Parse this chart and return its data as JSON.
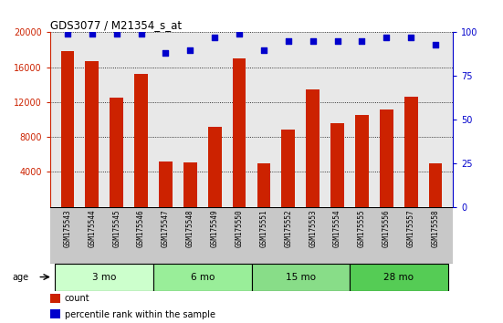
{
  "title": "GDS3077 / M21354_s_at",
  "samples": [
    "GSM175543",
    "GSM175544",
    "GSM175545",
    "GSM175546",
    "GSM175547",
    "GSM175548",
    "GSM175549",
    "GSM175550",
    "GSM175551",
    "GSM175552",
    "GSM175553",
    "GSM175554",
    "GSM175555",
    "GSM175556",
    "GSM175557",
    "GSM175558"
  ],
  "counts": [
    17800,
    16700,
    12500,
    15200,
    5200,
    5100,
    9200,
    17000,
    5000,
    8800,
    13500,
    9600,
    10500,
    11200,
    12600,
    5000
  ],
  "percentile_ranks": [
    99,
    99,
    99,
    99,
    88,
    90,
    97,
    99,
    90,
    95,
    95,
    95,
    95,
    97,
    97,
    93
  ],
  "ylim_left": [
    0,
    20000
  ],
  "ylim_right": [
    0,
    100
  ],
  "yticks_left": [
    4000,
    8000,
    12000,
    16000,
    20000
  ],
  "yticks_right": [
    0,
    25,
    50,
    75,
    100
  ],
  "bar_color": "#cc2200",
  "dot_color": "#0000cc",
  "groups": [
    {
      "label": "3 mo",
      "start": 0,
      "end": 3
    },
    {
      "label": "6 mo",
      "start": 4,
      "end": 7
    },
    {
      "label": "15 mo",
      "start": 8,
      "end": 11
    },
    {
      "label": "28 mo",
      "start": 12,
      "end": 15
    }
  ],
  "group_colors": [
    "#ccffcc",
    "#99ee99",
    "#88dd88",
    "#55cc55"
  ],
  "xtick_area_color": "#c8c8c8",
  "plot_bg_color": "#e8e8e8",
  "left_axis_color": "#cc2200",
  "right_axis_color": "#0000cc",
  "legend_items": [
    {
      "color": "#cc2200",
      "label": "count"
    },
    {
      "color": "#0000cc",
      "label": "percentile rank within the sample"
    }
  ]
}
